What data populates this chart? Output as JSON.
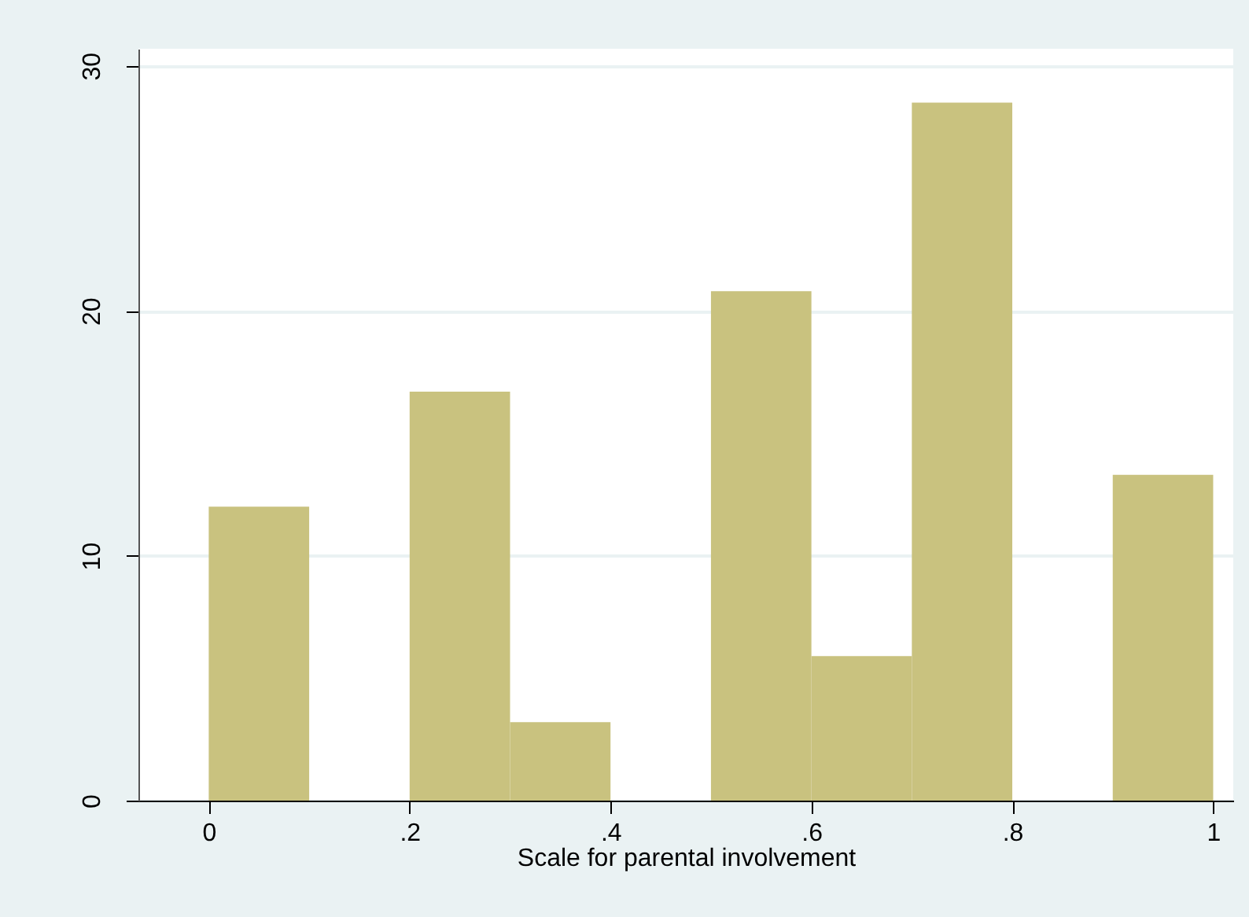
{
  "chart_data": {
    "type": "histogram",
    "xlabel": "Scale for parental involvement",
    "bins": [
      0,
      0.1,
      0.2,
      0.3,
      0.4,
      0.5,
      0.6,
      0.7,
      0.8,
      0.9,
      1.0
    ],
    "values": [
      12.0,
      0,
      16.7,
      3.2,
      0,
      20.8,
      5.9,
      28.5,
      0,
      13.3
    ],
    "color": "#c9c27f",
    "xlim": [
      -0.07,
      1.02
    ],
    "xticks": [
      {
        "value": 0,
        "label": "0"
      },
      {
        "value": 0.2,
        "label": ".2"
      },
      {
        "value": 0.4,
        "label": ".4"
      },
      {
        "value": 0.6,
        "label": ".6"
      },
      {
        "value": 0.8,
        "label": ".8"
      },
      {
        "value": 1,
        "label": "1"
      }
    ],
    "ylim": [
      0,
      30.7
    ],
    "yticks": [
      0,
      10,
      20,
      30
    ],
    "grid": "y"
  }
}
